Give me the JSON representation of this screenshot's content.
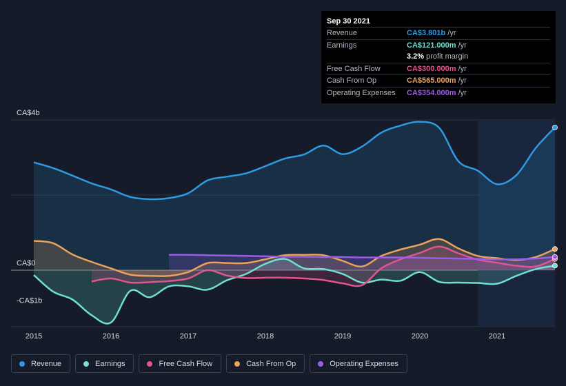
{
  "tooltip": {
    "date": "Sep 30 2021",
    "rows": [
      {
        "label": "Revenue",
        "value": "CA$3.801b",
        "unit": "/yr",
        "color": "#2f9ae3"
      },
      {
        "label": "Earnings",
        "value": "CA$121.000m",
        "unit": "/yr",
        "color": "#6fe0cd"
      },
      {
        "label": "",
        "value": "3.2%",
        "unit": "profit margin",
        "color": "#ffffff"
      },
      {
        "label": "Free Cash Flow",
        "value": "CA$300.000m",
        "unit": "/yr",
        "color": "#e0558f"
      },
      {
        "label": "Cash From Op",
        "value": "CA$565.000m",
        "unit": "/yr",
        "color": "#eba35a"
      },
      {
        "label": "Operating Expenses",
        "value": "CA$354.000m",
        "unit": "/yr",
        "color": "#9b5ce8"
      }
    ]
  },
  "legend": [
    {
      "label": "Revenue",
      "color": "#2f9ae3"
    },
    {
      "label": "Earnings",
      "color": "#6fe0cd"
    },
    {
      "label": "Free Cash Flow",
      "color": "#e0558f"
    },
    {
      "label": "Cash From Op",
      "color": "#eba35a"
    },
    {
      "label": "Operating Expenses",
      "color": "#9b5ce8"
    }
  ],
  "chart_data": {
    "type": "area",
    "title": "",
    "unit": "CA$ billions",
    "ylim": [
      -1.5,
      4.0
    ],
    "xlim": [
      2015.0,
      2021.75
    ],
    "y_tick_labels": [
      {
        "value": 4,
        "label": "CA$4b"
      },
      {
        "value": 0,
        "label": "CA$0"
      },
      {
        "value": -1,
        "label": "-CA$1b"
      }
    ],
    "x_ticks": [
      2015,
      2016,
      2017,
      2018,
      2019,
      2020,
      2021
    ],
    "x_tick_labels": [
      "2015",
      "2016",
      "2017",
      "2018",
      "2019",
      "2020",
      "2021"
    ],
    "forecast_start": 2020.75,
    "series": [
      {
        "name": "Revenue",
        "color": "#2f9ae3",
        "points": [
          [
            2015.0,
            2.87
          ],
          [
            2015.25,
            2.72
          ],
          [
            2015.5,
            2.52
          ],
          [
            2015.75,
            2.31
          ],
          [
            2016.0,
            2.15
          ],
          [
            2016.25,
            1.95
          ],
          [
            2016.5,
            1.89
          ],
          [
            2016.75,
            1.92
          ],
          [
            2017.0,
            2.05
          ],
          [
            2017.25,
            2.39
          ],
          [
            2017.5,
            2.49
          ],
          [
            2017.75,
            2.58
          ],
          [
            2018.0,
            2.77
          ],
          [
            2018.25,
            2.97
          ],
          [
            2018.5,
            3.08
          ],
          [
            2018.75,
            3.32
          ],
          [
            2019.0,
            3.09
          ],
          [
            2019.25,
            3.29
          ],
          [
            2019.5,
            3.66
          ],
          [
            2019.75,
            3.85
          ],
          [
            2020.0,
            3.95
          ],
          [
            2020.25,
            3.79
          ],
          [
            2020.5,
            2.9
          ],
          [
            2020.75,
            2.65
          ],
          [
            2021.0,
            2.29
          ],
          [
            2021.25,
            2.53
          ],
          [
            2021.5,
            3.25
          ],
          [
            2021.75,
            3.801
          ]
        ]
      },
      {
        "name": "Earnings",
        "color": "#6fe0cd",
        "points": [
          [
            2015.0,
            -0.13
          ],
          [
            2015.25,
            -0.57
          ],
          [
            2015.5,
            -0.78
          ],
          [
            2015.75,
            -1.2
          ],
          [
            2016.0,
            -1.39
          ],
          [
            2016.25,
            -0.55
          ],
          [
            2016.5,
            -0.72
          ],
          [
            2016.75,
            -0.43
          ],
          [
            2017.0,
            -0.43
          ],
          [
            2017.25,
            -0.52
          ],
          [
            2017.5,
            -0.27
          ],
          [
            2017.75,
            -0.1
          ],
          [
            2018.0,
            0.17
          ],
          [
            2018.25,
            0.3
          ],
          [
            2018.5,
            0.05
          ],
          [
            2018.75,
            0.03
          ],
          [
            2019.0,
            -0.1
          ],
          [
            2019.25,
            -0.33
          ],
          [
            2019.5,
            -0.25
          ],
          [
            2019.75,
            -0.28
          ],
          [
            2020.0,
            -0.05
          ],
          [
            2020.25,
            -0.31
          ],
          [
            2020.5,
            -0.33
          ],
          [
            2020.75,
            -0.34
          ],
          [
            2021.0,
            -0.36
          ],
          [
            2021.25,
            -0.15
          ],
          [
            2021.5,
            0.03
          ],
          [
            2021.75,
            0.121
          ]
        ]
      },
      {
        "name": "Free Cash Flow",
        "color": "#e0558f",
        "points": [
          [
            2015.75,
            -0.3
          ],
          [
            2016.0,
            -0.22
          ],
          [
            2016.25,
            -0.33
          ],
          [
            2016.5,
            -0.32
          ],
          [
            2016.75,
            -0.29
          ],
          [
            2017.0,
            -0.22
          ],
          [
            2017.25,
            -0.0
          ],
          [
            2017.5,
            -0.14
          ],
          [
            2017.75,
            -0.21
          ],
          [
            2018.0,
            -0.2
          ],
          [
            2018.25,
            -0.2
          ],
          [
            2018.5,
            -0.22
          ],
          [
            2018.75,
            -0.26
          ],
          [
            2019.0,
            -0.35
          ],
          [
            2019.25,
            -0.4
          ],
          [
            2019.5,
            0.05
          ],
          [
            2019.75,
            0.29
          ],
          [
            2020.0,
            0.46
          ],
          [
            2020.25,
            0.63
          ],
          [
            2020.5,
            0.45
          ],
          [
            2020.75,
            0.28
          ],
          [
            2021.0,
            0.2
          ],
          [
            2021.25,
            0.12
          ],
          [
            2021.5,
            0.1
          ],
          [
            2021.75,
            0.3
          ]
        ]
      },
      {
        "name": "Cash From Op",
        "color": "#eba35a",
        "points": [
          [
            2015.0,
            0.78
          ],
          [
            2015.25,
            0.72
          ],
          [
            2015.5,
            0.42
          ],
          [
            2015.75,
            0.22
          ],
          [
            2016.0,
            0.05
          ],
          [
            2016.25,
            -0.12
          ],
          [
            2016.5,
            -0.15
          ],
          [
            2016.75,
            -0.15
          ],
          [
            2017.0,
            -0.05
          ],
          [
            2017.25,
            0.19
          ],
          [
            2017.5,
            0.19
          ],
          [
            2017.75,
            0.19
          ],
          [
            2018.0,
            0.29
          ],
          [
            2018.25,
            0.4
          ],
          [
            2018.5,
            0.41
          ],
          [
            2018.75,
            0.4
          ],
          [
            2019.0,
            0.25
          ],
          [
            2019.25,
            0.1
          ],
          [
            2019.5,
            0.38
          ],
          [
            2019.75,
            0.55
          ],
          [
            2020.0,
            0.68
          ],
          [
            2020.25,
            0.83
          ],
          [
            2020.5,
            0.58
          ],
          [
            2020.75,
            0.38
          ],
          [
            2021.0,
            0.32
          ],
          [
            2021.25,
            0.27
          ],
          [
            2021.5,
            0.35
          ],
          [
            2021.75,
            0.565
          ]
        ]
      },
      {
        "name": "Operating Expenses",
        "color": "#9b5ce8",
        "points": [
          [
            2016.75,
            0.41
          ],
          [
            2017.0,
            0.41
          ],
          [
            2017.25,
            0.4
          ],
          [
            2017.5,
            0.39
          ],
          [
            2017.75,
            0.38
          ],
          [
            2018.0,
            0.37
          ],
          [
            2018.25,
            0.36
          ],
          [
            2018.5,
            0.36
          ],
          [
            2018.75,
            0.35
          ],
          [
            2019.0,
            0.35
          ],
          [
            2019.25,
            0.34
          ],
          [
            2019.5,
            0.34
          ],
          [
            2019.75,
            0.34
          ],
          [
            2020.0,
            0.33
          ],
          [
            2020.25,
            0.32
          ],
          [
            2020.5,
            0.31
          ],
          [
            2020.75,
            0.3
          ],
          [
            2021.0,
            0.29
          ],
          [
            2021.25,
            0.29
          ],
          [
            2021.5,
            0.31
          ],
          [
            2021.75,
            0.354
          ]
        ]
      }
    ]
  }
}
